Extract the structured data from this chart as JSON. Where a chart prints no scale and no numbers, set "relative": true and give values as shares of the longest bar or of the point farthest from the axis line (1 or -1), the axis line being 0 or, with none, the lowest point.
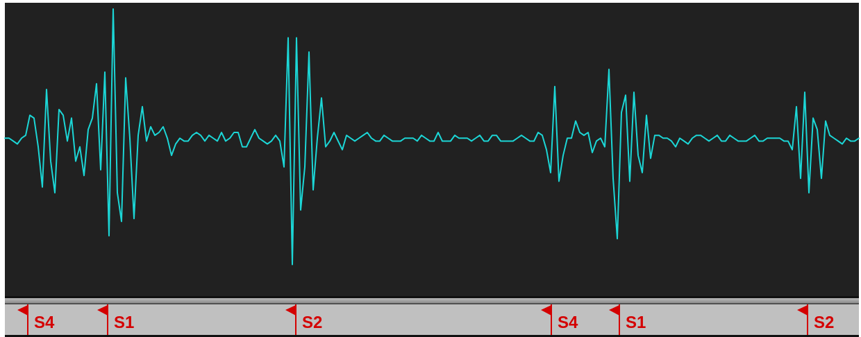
{
  "chart_data": {
    "type": "line",
    "relative": true,
    "color": "#1cd6d6",
    "categories": [
      null,
      null,
      null,
      null,
      null,
      null,
      null,
      null,
      null,
      null,
      null,
      null,
      null,
      null,
      null,
      null,
      null,
      null,
      null,
      null,
      null,
      null,
      null,
      null,
      null,
      null,
      null,
      null,
      null,
      null,
      null,
      null,
      null,
      null,
      null,
      null,
      null,
      null,
      null,
      null,
      null,
      null,
      null,
      null,
      null,
      null,
      null,
      null,
      null,
      null,
      null,
      null,
      null,
      null,
      null,
      null,
      null,
      null,
      null,
      null,
      null,
      null,
      null,
      null,
      null,
      null,
      null,
      null,
      null,
      null,
      null,
      null,
      null,
      null,
      null,
      null,
      null,
      null,
      null,
      null,
      null,
      null,
      null,
      null,
      null,
      null,
      null,
      null,
      null,
      null,
      null,
      null,
      null,
      null,
      null,
      null,
      null,
      null,
      null,
      null,
      null,
      null,
      null,
      null,
      null,
      null,
      null,
      null,
      null,
      null,
      null,
      null,
      null,
      null,
      null,
      null,
      null,
      null,
      null,
      null,
      null,
      null,
      null,
      null,
      null,
      null,
      null,
      null,
      null,
      null,
      null,
      null,
      null,
      null,
      null,
      null,
      null,
      null,
      null,
      null,
      null,
      null,
      null,
      null,
      null,
      null,
      null,
      null,
      null,
      null,
      null,
      null,
      null,
      null,
      null,
      null,
      null,
      null,
      null,
      null,
      null,
      null,
      null,
      null,
      null,
      null,
      null,
      null,
      null,
      null,
      null,
      null,
      null,
      null,
      null,
      null,
      null,
      null,
      null,
      null,
      null,
      null,
      null,
      null,
      null,
      null,
      null,
      null,
      null,
      null,
      null,
      null,
      null,
      null,
      null,
      null,
      null,
      null,
      null,
      null,
      null,
      null,
      null,
      null,
      null,
      null
    ],
    "values": [
      0.55,
      0.55,
      0.54,
      0.53,
      0.55,
      0.56,
      0.63,
      0.62,
      0.52,
      0.38,
      0.72,
      0.47,
      0.36,
      0.65,
      0.63,
      0.54,
      0.62,
      0.47,
      0.52,
      0.42,
      0.58,
      0.62,
      0.74,
      0.44,
      0.78,
      0.21,
      1.0,
      0.36,
      0.26,
      0.76,
      0.55,
      0.27,
      0.56,
      0.66,
      0.54,
      0.59,
      0.56,
      0.57,
      0.59,
      0.55,
      0.49,
      0.53,
      0.55,
      0.54,
      0.54,
      0.56,
      0.57,
      0.56,
      0.54,
      0.56,
      0.55,
      0.54,
      0.57,
      0.54,
      0.55,
      0.57,
      0.57,
      0.52,
      0.52,
      0.55,
      0.58,
      0.55,
      0.54,
      0.53,
      0.54,
      0.56,
      0.54,
      0.45,
      0.9,
      0.11,
      0.9,
      0.3,
      0.45,
      0.85,
      0.37,
      0.55,
      0.69,
      0.52,
      0.54,
      0.57,
      0.54,
      0.51,
      0.56,
      0.55,
      0.54,
      0.55,
      0.56,
      0.57,
      0.55,
      0.54,
      0.54,
      0.56,
      0.55,
      0.54,
      0.54,
      0.54,
      0.55,
      0.55,
      0.55,
      0.54,
      0.56,
      0.55,
      0.54,
      0.54,
      0.57,
      0.54,
      0.54,
      0.54,
      0.56,
      0.55,
      0.55,
      0.55,
      0.54,
      0.55,
      0.56,
      0.54,
      0.54,
      0.56,
      0.56,
      0.54,
      0.54,
      0.54,
      0.54,
      0.55,
      0.56,
      0.55,
      0.54,
      0.54,
      0.57,
      0.56,
      0.51,
      0.43,
      0.73,
      0.4,
      0.49,
      0.55,
      0.55,
      0.61,
      0.57,
      0.56,
      0.57,
      0.5,
      0.54,
      0.55,
      0.52,
      0.79,
      0.41,
      0.2,
      0.64,
      0.7,
      0.4,
      0.71,
      0.49,
      0.43,
      0.63,
      0.48,
      0.56,
      0.56,
      0.55,
      0.55,
      0.54,
      0.52,
      0.55,
      0.54,
      0.53,
      0.55,
      0.56,
      0.56,
      0.55,
      0.54,
      0.55,
      0.56,
      0.54,
      0.54,
      0.56,
      0.55,
      0.54,
      0.54,
      0.54,
      0.55,
      0.56,
      0.54,
      0.54,
      0.55,
      0.55,
      0.55,
      0.55,
      0.54,
      0.54,
      0.51,
      0.66,
      0.41,
      0.71,
      0.36,
      0.62,
      0.58,
      0.41,
      0.61,
      0.56,
      0.55,
      0.54,
      0.53,
      0.55,
      0.54,
      0.54,
      0.55
    ],
    "annotations": [
      "S4",
      "S1",
      "S2",
      "S4",
      "S1",
      "S2"
    ]
  }
}
